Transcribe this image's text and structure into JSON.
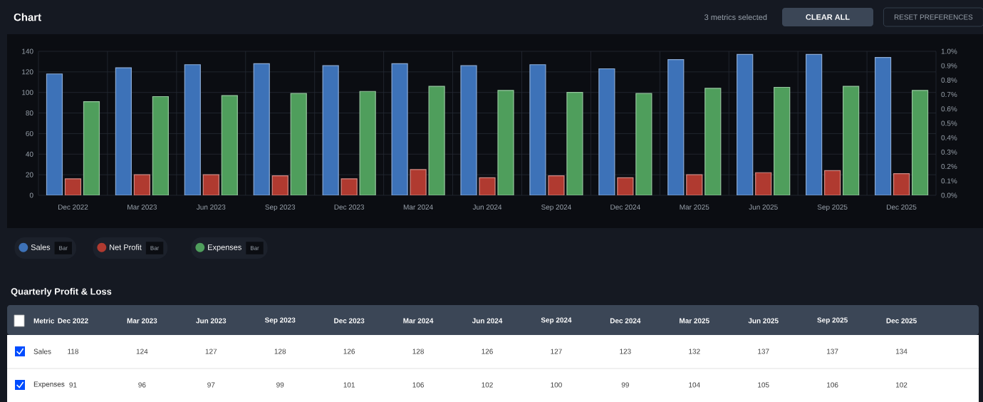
{
  "chart_data": {
    "type": "bar",
    "title": "Chart",
    "categories": [
      "Dec 2022",
      "Mar 2023",
      "Jun 2023",
      "Sep 2023",
      "Dec 2023",
      "Mar 2024",
      "Jun 2024",
      "Sep 2024",
      "Dec 2024",
      "Mar 2025",
      "Jun 2025",
      "Sep 2025",
      "Dec 2025"
    ],
    "series": [
      {
        "name": "Sales",
        "color": "#3d72b8",
        "values": [
          118,
          124,
          127,
          128,
          126,
          128,
          126,
          127,
          123,
          132,
          137,
          137,
          134
        ],
        "value_labels": [
          "118",
          "124",
          "127",
          "128",
          "126",
          "128",
          "126",
          "127",
          "123",
          "132",
          "137",
          "137",
          "134"
        ]
      },
      {
        "name": "Net Profit",
        "color": "#b03a30",
        "values": [
          16,
          20,
          20,
          19,
          16,
          25,
          17,
          19,
          17,
          20,
          22,
          24,
          21
        ]
      },
      {
        "name": "Expenses",
        "color": "#4f9e5c",
        "values": [
          91,
          96,
          97,
          99,
          101,
          106,
          102,
          100,
          99,
          104,
          105,
          106,
          102
        ],
        "value_labels": [
          "91",
          "96",
          "97",
          "99",
          "101",
          "106",
          "102",
          "100",
          "99",
          "104",
          "105",
          "106",
          "102"
        ]
      }
    ],
    "ylim": [
      0,
      140
    ],
    "yticks": [
      0,
      20,
      40,
      60,
      80,
      100,
      120,
      140
    ],
    "y2lim": [
      0,
      1
    ],
    "y2ticks": [
      {
        "value": 0,
        "label": "0.0%"
      },
      {
        "value": 0.1,
        "label": "0.1%"
      },
      {
        "value": 0.2,
        "label": "0.2%"
      },
      {
        "value": 0.3,
        "label": "0.3%"
      },
      {
        "value": 0.4,
        "label": "0.4%"
      },
      {
        "value": 0.5,
        "label": "0.5%"
      },
      {
        "value": 0.6,
        "label": "0.6%"
      },
      {
        "value": 0.7,
        "label": "0.7%"
      },
      {
        "value": 0.8,
        "label": "0.8%"
      },
      {
        "value": 0.9,
        "label": "0.9%"
      },
      {
        "value": 1,
        "label": "1.0%"
      }
    ],
    "grid": true,
    "legend": "bottom left",
    "annotations": [
      "3 metrics selected",
      "CLEAR ALL",
      "RESET PREFERENCES",
      "Bar",
      "Bar",
      "Bar",
      "Quarterly Profit & Loss",
      "Metric"
    ]
  }
}
